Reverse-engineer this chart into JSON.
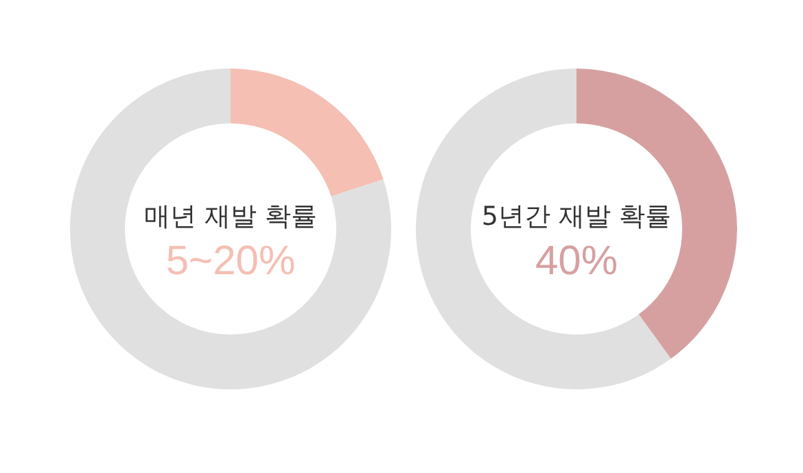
{
  "chart_data": [
    {
      "type": "donut",
      "title": "매년 재발 확률",
      "annotations": [
        "5~20%"
      ],
      "categories": [
        null,
        null
      ],
      "values": [
        20,
        80
      ],
      "colors": [
        "#f5bfb3",
        "#e0e0e0"
      ]
    },
    {
      "type": "donut",
      "title": "5년간 재발 확률",
      "annotations": [
        "40%"
      ],
      "categories": [
        null,
        null
      ],
      "values": [
        40,
        60
      ],
      "colors": [
        "#d6a0a1",
        "#e0e0e0"
      ]
    }
  ]
}
